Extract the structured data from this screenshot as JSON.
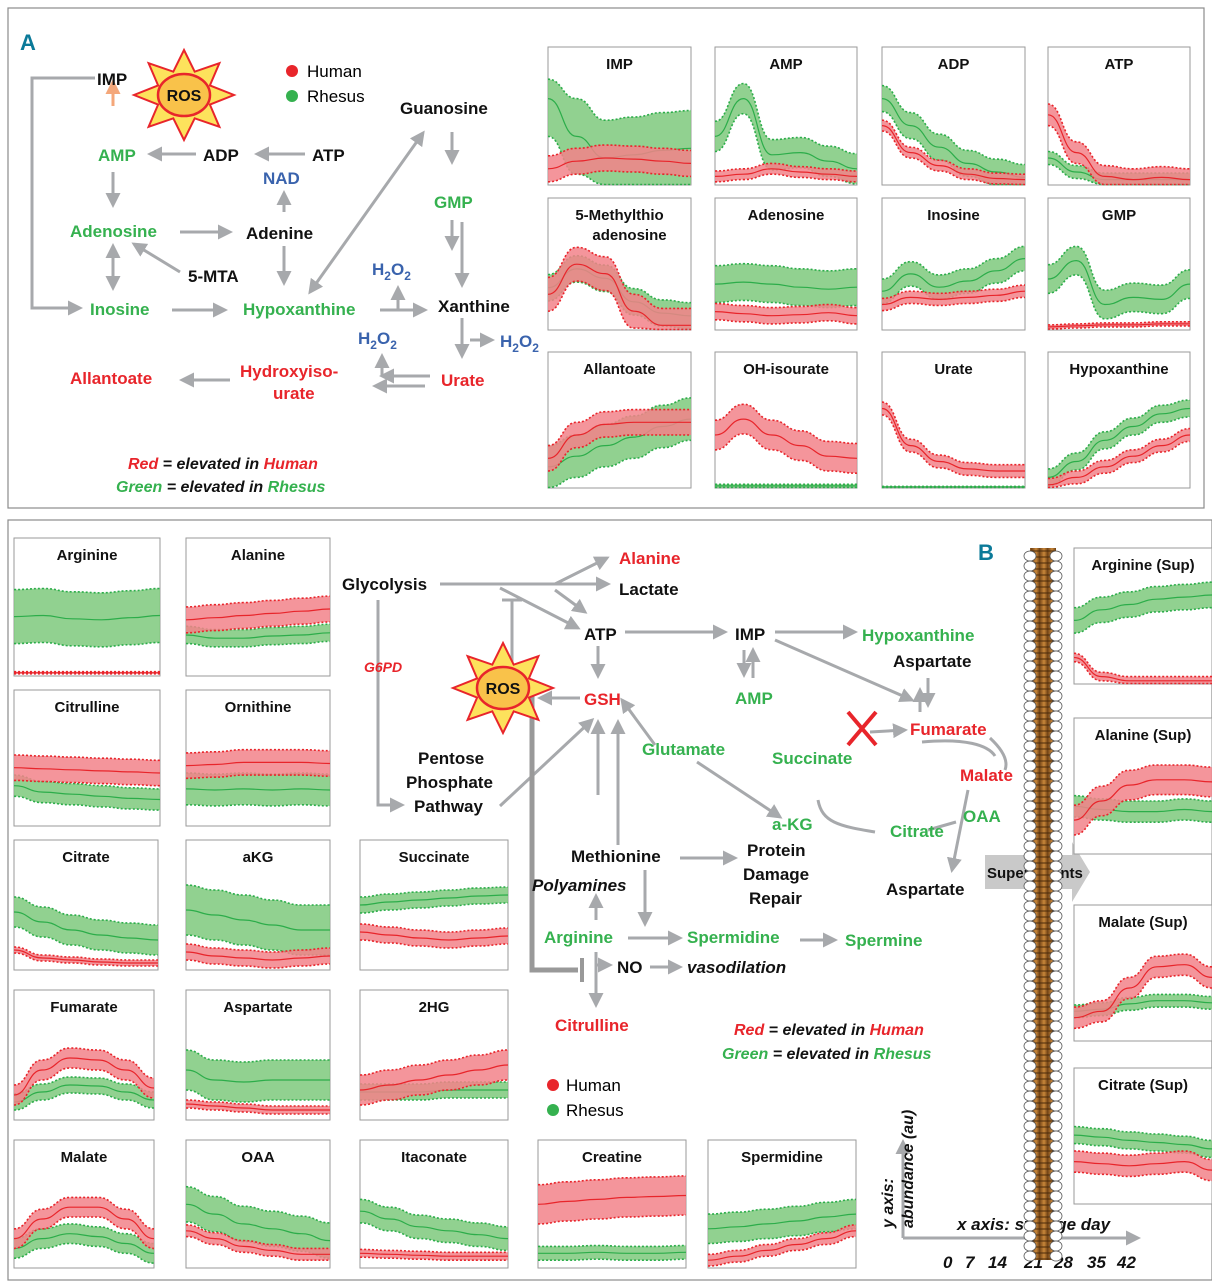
{
  "colors": {
    "human": "#e8252b",
    "human_fill": "#f2838a",
    "rhesus": "#2cad4a",
    "rhesus_fill": "#7ec97d",
    "rhesus_node": "#35b14f",
    "h2o2": "#3a63ad",
    "arrow": "#a7a9ac",
    "panel_label": "#0b7a99",
    "frame": "#8b8b8b"
  },
  "panelA": {
    "label": "A",
    "legend": {
      "human": "Human",
      "rhesus": "Rhesus"
    },
    "ros": "ROS",
    "nodes": {
      "imp": "IMP",
      "amp": "AMP",
      "adp": "ADP",
      "atp": "ATP",
      "nad": "NAD",
      "adenosine": "Adenosine",
      "adenine": "Adenine",
      "mta": "5-MTA",
      "inosine": "Inosine",
      "hypoxanthine": "Hypoxanthine",
      "xanthine": "Xanthine",
      "guanosine": "Guanosine",
      "gmp": "GMP",
      "h2o2": "H2O2",
      "h2o2_base": "H",
      "h2o2_sub": "2",
      "h2o2_o": "O",
      "allantoate": "Allantoate",
      "hydroxy1": "Hydroxyiso-",
      "hydroxy2": "urate",
      "urate": "Urate"
    },
    "note": {
      "red_word": "Red",
      "red_rest": " = elevated in ",
      "human": "Human",
      "green_word": "Green",
      "green_rest": " = elevated in ",
      "rhesus": "Rhesus"
    },
    "charts": [
      {
        "title": "IMP"
      },
      {
        "title": "AMP"
      },
      {
        "title": "ADP"
      },
      {
        "title": "ATP"
      },
      {
        "title": "5-Methylthio",
        "title2": "adenosine"
      },
      {
        "title": "Adenosine"
      },
      {
        "title": "Inosine"
      },
      {
        "title": "GMP"
      },
      {
        "title": "Allantoate"
      },
      {
        "title": "OH-isourate"
      },
      {
        "title": "Urate"
      },
      {
        "title": "Hypoxanthine"
      }
    ]
  },
  "panelB": {
    "label": "B",
    "legend": {
      "human": "Human",
      "rhesus": "Rhesus"
    },
    "ros": "ROS",
    "nodes": {
      "glycolysis": "Glycolysis",
      "g6pd": "G6PD",
      "alanine": "Alanine",
      "lactate": "Lactate",
      "atp": "ATP",
      "gsh": "GSH",
      "imp": "IMP",
      "amp": "AMP",
      "hypoxanthine": "Hypoxanthine",
      "aspartate": "Aspartate",
      "fumarate": "Fumarate",
      "malate": "Malate",
      "oaa": "OAA",
      "citrate": "Citrate",
      "succinate": "Succinate",
      "akg": "a-KG",
      "glutamate": "Glutamate",
      "pentose1": "Pentose",
      "pentose2": "Phosphate",
      "pentose3": "Pathway",
      "methionine": "Methionine",
      "protein1": "Protein",
      "protein2": "Damage",
      "protein3": "Repair",
      "polyamines": "Polyamines",
      "arginine": "Arginine",
      "spermidine": "Spermidine",
      "spermine": "Spermine",
      "no": "NO",
      "vasodilation": "vasodilation",
      "citrulline": "Citrulline",
      "aspartate2": "Aspartate",
      "supernatants": "Supernatants"
    },
    "note": {
      "red_word": "Red",
      "red_rest": " = elevated in ",
      "human": "Human",
      "green_word": "Green",
      "green_rest": " = elevated in ",
      "rhesus": "Rhesus"
    },
    "axis": {
      "y1": "y axis:",
      "y2": "abundance (au)",
      "x": "x axis: storage day",
      "days": [
        "0",
        "7",
        "14",
        "21",
        "28",
        "35",
        "42"
      ]
    },
    "charts": [
      {
        "title": "Arginine"
      },
      {
        "title": "Alanine"
      },
      {
        "title": "Citrulline"
      },
      {
        "title": "Ornithine"
      },
      {
        "title": "Citrate"
      },
      {
        "title": "aKG"
      },
      {
        "title": "Succinate"
      },
      {
        "title": "Fumarate"
      },
      {
        "title": "Aspartate"
      },
      {
        "title": "2HG"
      },
      {
        "title": "Malate"
      },
      {
        "title": "OAA"
      },
      {
        "title": "Itaconate"
      },
      {
        "title": "Creatine"
      },
      {
        "title": "Spermidine"
      },
      {
        "title": "Arginine (Sup)"
      },
      {
        "title": "Alanine (Sup)"
      },
      {
        "title": "Malate (Sup)"
      },
      {
        "title": "Citrate (Sup)"
      }
    ]
  }
}
